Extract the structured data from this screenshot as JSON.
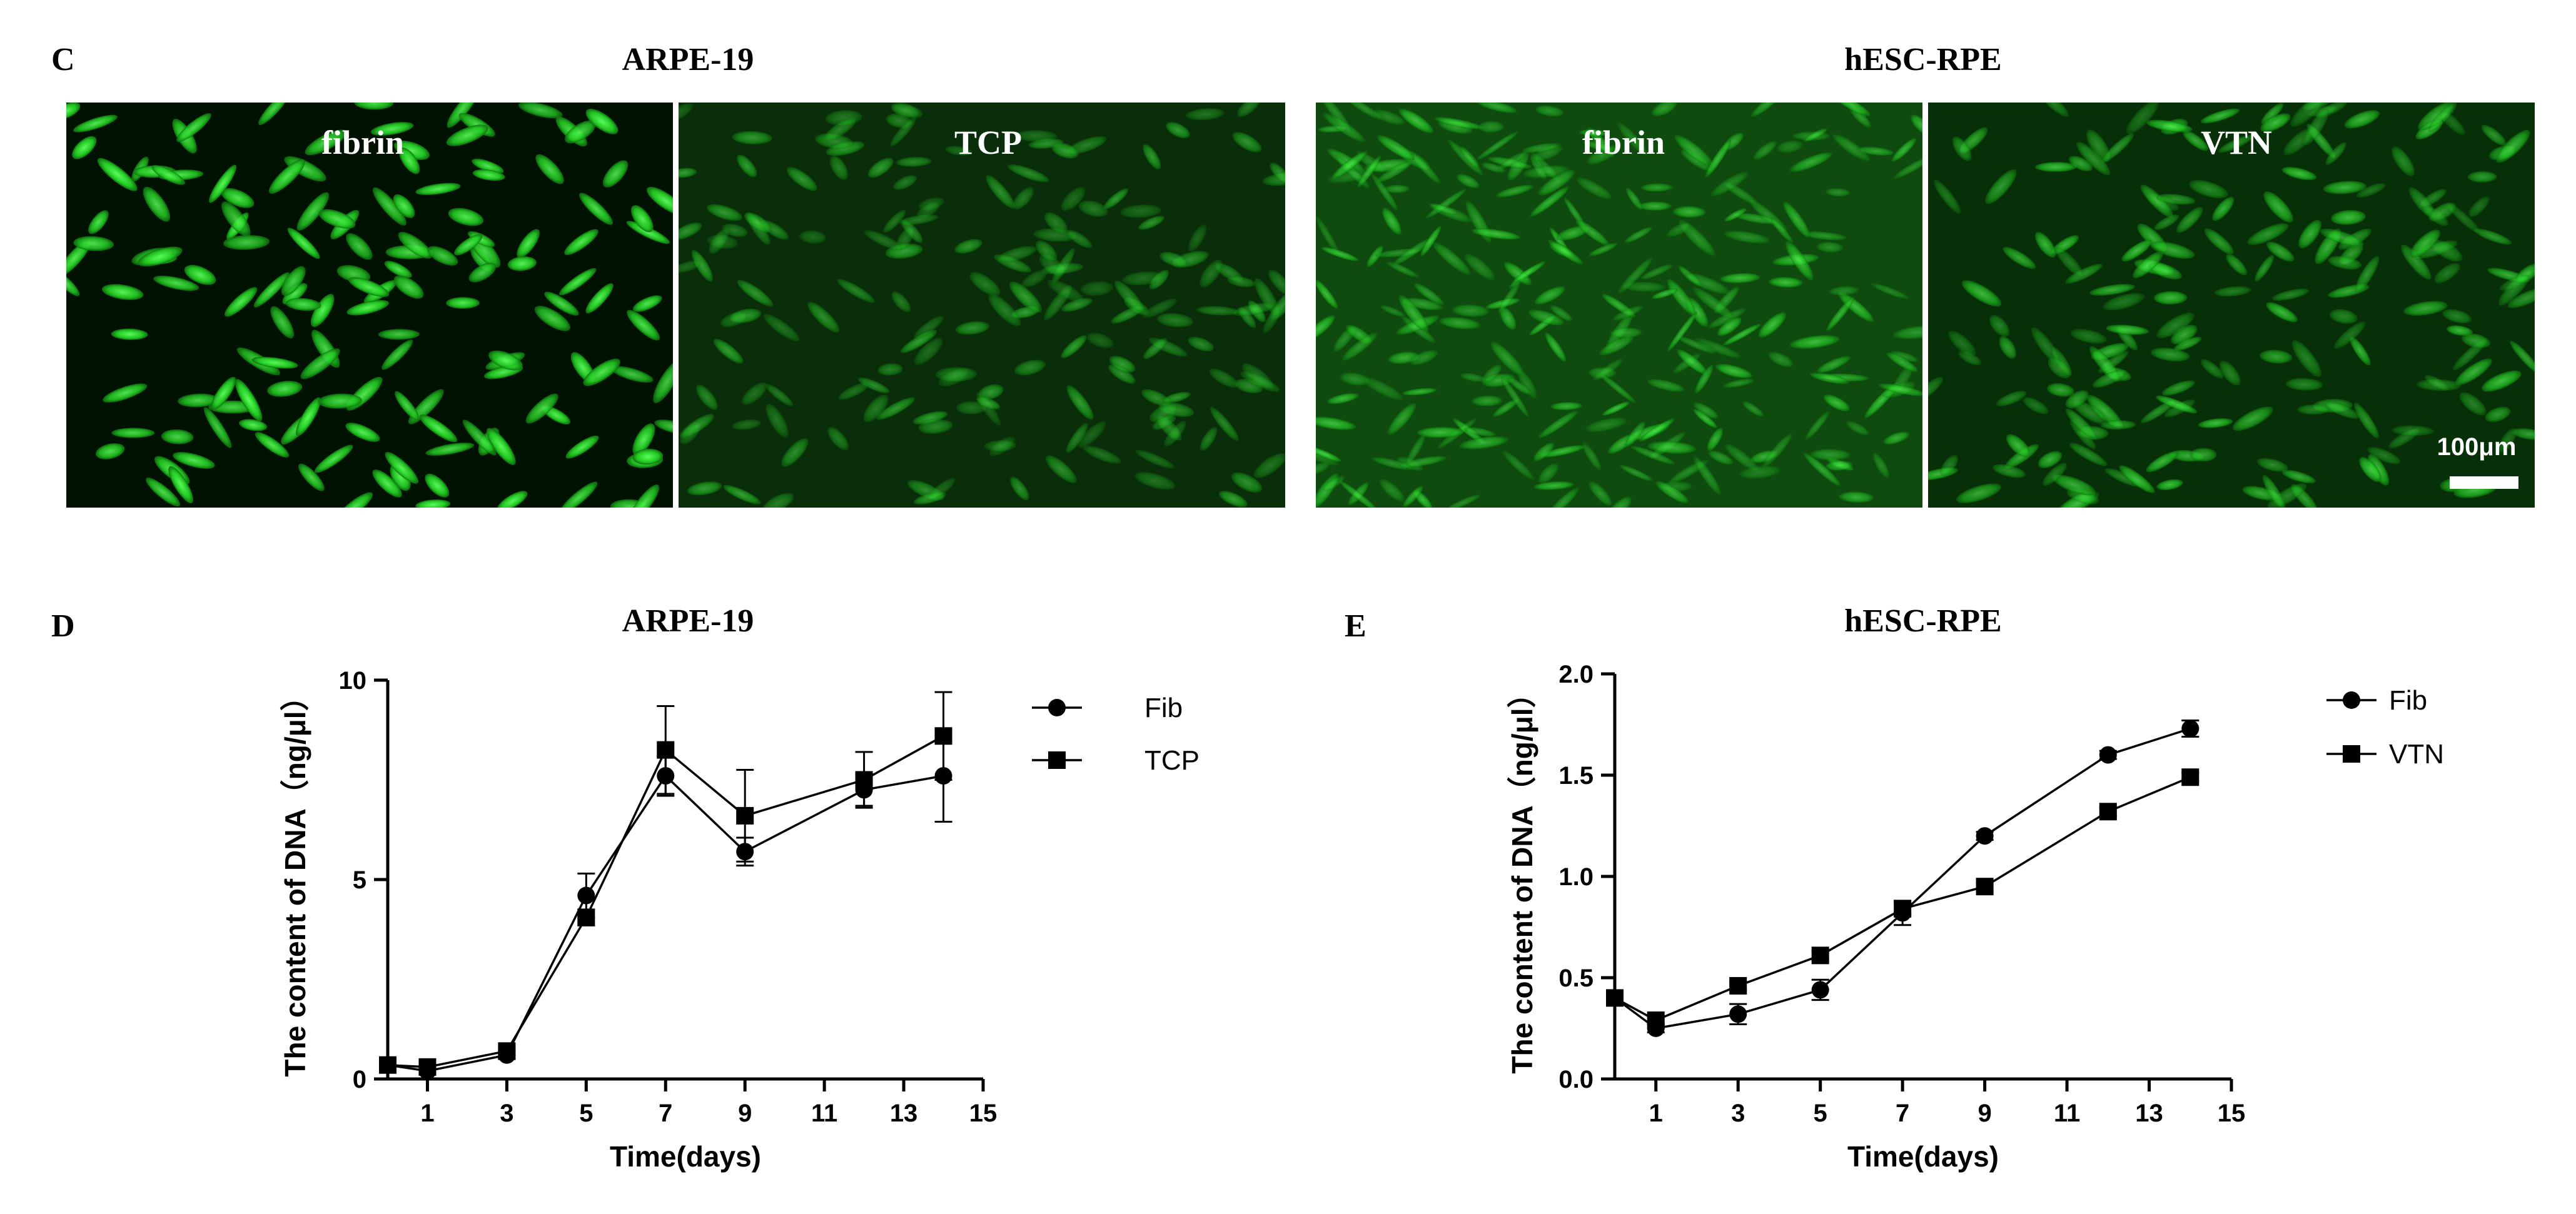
{
  "panels": {
    "c": {
      "letter": "C",
      "groups": [
        {
          "title": "ARPE-19",
          "images": [
            {
              "label": "fibrin"
            },
            {
              "label": "TCP"
            }
          ]
        },
        {
          "title": "hESC-RPE",
          "images": [
            {
              "label": "fibrin"
            },
            {
              "label": "VTN"
            }
          ]
        }
      ],
      "scale_bar_label": "100μm",
      "colors": {
        "cells": "#2ee62e",
        "background": "#0b3a0b"
      }
    },
    "d": {
      "letter": "D"
    },
    "e": {
      "letter": "E"
    }
  },
  "chart_data": [
    {
      "type": "line",
      "title": "ARPE-19",
      "xlabel": "Time(days)",
      "ylabel": "The content of DNA（ng/μl）",
      "xlim": [
        0,
        15
      ],
      "ylim": [
        0,
        10
      ],
      "xticks": [
        1,
        3,
        5,
        7,
        9,
        11,
        13,
        15
      ],
      "yticks": [
        0,
        5,
        10
      ],
      "legend": "top-right",
      "x": [
        0,
        1,
        3,
        5,
        7,
        9,
        12,
        14
      ],
      "series": [
        {
          "name": "Fib",
          "marker": "circle",
          "values": [
            0.35,
            0.2,
            0.6,
            4.6,
            7.6,
            5.7,
            7.25,
            7.6
          ],
          "errors": [
            0.05,
            0.05,
            0.1,
            0.55,
            0.5,
            0.35,
            0.4,
            1.15
          ]
        },
        {
          "name": "TCP",
          "marker": "square",
          "values": [
            0.35,
            0.3,
            0.7,
            4.05,
            8.25,
            6.6,
            7.5,
            8.6
          ],
          "errors": [
            0.05,
            0.05,
            0.1,
            0.2,
            1.1,
            1.15,
            0.7,
            1.1
          ]
        }
      ]
    },
    {
      "type": "line",
      "title": "hESC-RPE",
      "xlabel": "Time(days)",
      "ylabel": "The content of DNA（ng/μl）",
      "xlim": [
        0,
        15
      ],
      "ylim": [
        0,
        2.0
      ],
      "xticks": [
        1,
        3,
        5,
        7,
        9,
        11,
        13,
        15
      ],
      "yticks": [
        "0.0",
        "0.5",
        "1.0",
        "1.5",
        "2.0"
      ],
      "legend": "top-right",
      "x": [
        0,
        1,
        3,
        5,
        7,
        9,
        12,
        14
      ],
      "series": [
        {
          "name": "Fib",
          "marker": "circle",
          "values": [
            0.4,
            0.25,
            0.32,
            0.44,
            0.82,
            1.2,
            1.6,
            1.73
          ],
          "errors": [
            0.03,
            0.02,
            0.05,
            0.05,
            0.06,
            0.02,
            0.02,
            0.04
          ]
        },
        {
          "name": "VTN",
          "marker": "square",
          "values": [
            0.4,
            0.29,
            0.46,
            0.61,
            0.84,
            0.95,
            1.32,
            1.49
          ],
          "errors": [
            0.03,
            0.02,
            0.02,
            0.02,
            0.03,
            0.02,
            0.02,
            0.02
          ]
        }
      ]
    }
  ]
}
